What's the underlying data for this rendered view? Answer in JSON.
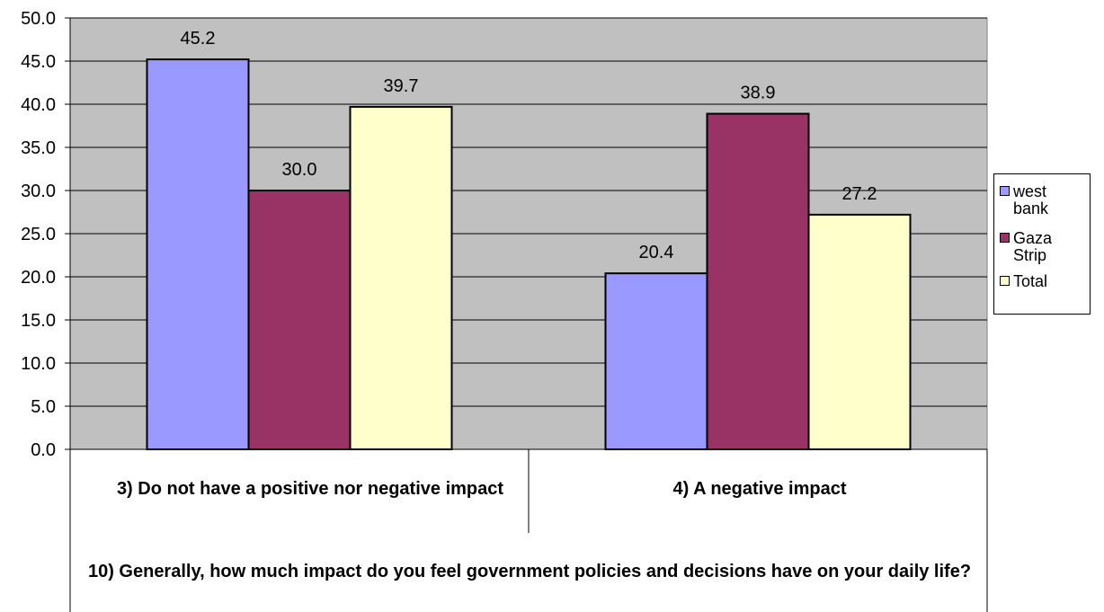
{
  "chart_data": {
    "type": "bar",
    "title": "",
    "xlabel": "10) Generally, how much impact do you feel government policies and decisions have on your daily life?",
    "ylabel": "",
    "ylim": [
      0,
      50
    ],
    "yticks": [
      "0.0",
      "5.0",
      "10.0",
      "15.0",
      "20.0",
      "25.0",
      "30.0",
      "35.0",
      "40.0",
      "45.0",
      "50.0"
    ],
    "grid": true,
    "legend_position": "right",
    "categories": [
      "3) Do not have a positive nor negative impact",
      "4) A negative impact"
    ],
    "series": [
      {
        "name": "west bank",
        "color": "#9999ff",
        "values": [
          45.2,
          20.4
        ],
        "labels": [
          "45.2",
          "20.4"
        ]
      },
      {
        "name": "Gaza Strip",
        "color": "#993366",
        "values": [
          30.0,
          38.9
        ],
        "labels": [
          "30.0",
          "38.9"
        ]
      },
      {
        "name": "Total",
        "color": "#ffffcc",
        "values": [
          39.7,
          27.2
        ],
        "labels": [
          "39.7",
          "27.2"
        ]
      }
    ],
    "plot_background": "#c0c0c0"
  }
}
